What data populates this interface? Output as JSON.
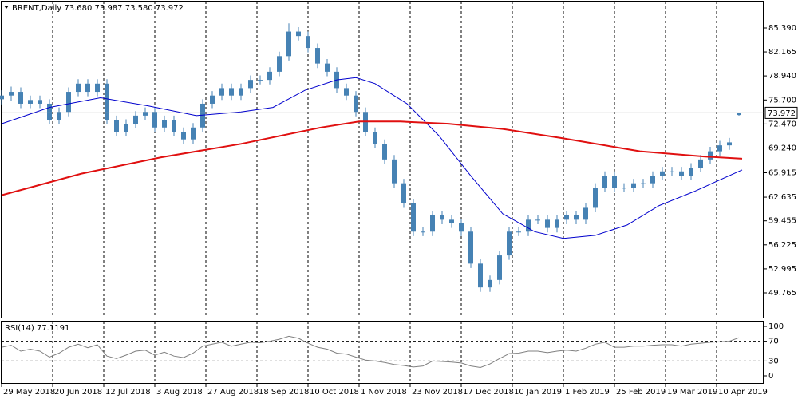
{
  "chart_data": [
    {
      "type": "candlestick",
      "title": "BRENT,Daily  73.680 73.987 73.580 73.972",
      "color": "#4682b4",
      "x": [
        0,
        3,
        6,
        9,
        12,
        15,
        18,
        21,
        24,
        27,
        30,
        33,
        36,
        39,
        42,
        45,
        48,
        51,
        54,
        57,
        60,
        63,
        66,
        69,
        72,
        75,
        78,
        81,
        84,
        87,
        90,
        93,
        96,
        99,
        102,
        105,
        108,
        111,
        114,
        117,
        120,
        123,
        126,
        129,
        132,
        135,
        138,
        141,
        144,
        147,
        150,
        153,
        156,
        159,
        162,
        165,
        168,
        171,
        174,
        177,
        180,
        183,
        186,
        189,
        192,
        195,
        198,
        201,
        204,
        207,
        210,
        213,
        216,
        219,
        222,
        225,
        228,
        231
      ],
      "open": [
        75.8,
        76.3,
        76.8,
        75.2,
        75.7,
        75.2,
        73.0,
        74.1,
        76.8,
        77.9,
        76.8,
        77.9,
        73.0,
        71.4,
        72.5,
        73.6,
        74.1,
        72.0,
        73.0,
        71.4,
        70.4,
        72.0,
        75.2,
        76.3,
        77.3,
        76.3,
        77.3,
        78.4,
        78.4,
        79.5,
        81.6,
        84.9,
        84.3,
        82.7,
        80.6,
        79.5,
        77.3,
        76.3,
        74.1,
        71.4,
        69.8,
        67.7,
        64.5,
        61.8,
        58.0,
        58.0,
        60.2,
        59.6,
        59.1,
        58.0,
        53.7,
        50.5,
        51.5,
        54.8,
        58.0,
        58.0,
        59.6,
        59.6,
        58.5,
        59.6,
        60.2,
        59.6,
        61.2,
        63.9,
        65.5,
        63.9,
        63.9,
        64.5,
        64.5,
        65.5,
        66.1,
        66.1,
        65.5,
        66.6,
        67.7,
        68.8,
        69.6,
        73.68
      ],
      "high": [
        77.0,
        77.5,
        77.4,
        76.3,
        76.3,
        75.8,
        74.7,
        77.4,
        78.5,
        78.5,
        78.5,
        78.5,
        73.6,
        73.1,
        74.2,
        74.7,
        74.7,
        73.6,
        73.6,
        72.0,
        72.6,
        75.8,
        76.9,
        77.9,
        77.9,
        77.9,
        79.0,
        79.0,
        80.1,
        82.2,
        86.0,
        85.5,
        84.9,
        83.3,
        81.2,
        80.1,
        77.9,
        76.9,
        74.7,
        72.0,
        70.4,
        68.3,
        65.1,
        62.4,
        58.6,
        60.8,
        60.8,
        60.2,
        59.7,
        58.6,
        54.3,
        52.1,
        55.4,
        58.6,
        58.6,
        60.2,
        60.2,
        60.2,
        60.2,
        60.8,
        60.8,
        61.8,
        64.5,
        66.1,
        66.1,
        64.5,
        65.1,
        65.1,
        66.1,
        66.7,
        66.7,
        66.7,
        67.2,
        68.3,
        69.4,
        70.2,
        70.6,
        73.987
      ],
      "low": [
        75.1,
        75.6,
        74.6,
        74.6,
        74.6,
        72.4,
        72.4,
        73.5,
        76.2,
        76.2,
        76.2,
        72.4,
        70.8,
        70.8,
        71.9,
        73.0,
        71.4,
        71.4,
        70.8,
        69.8,
        69.8,
        71.4,
        74.6,
        75.7,
        75.7,
        75.7,
        76.7,
        77.8,
        77.8,
        78.9,
        81.0,
        83.7,
        82.1,
        80.0,
        78.9,
        76.7,
        75.7,
        73.5,
        70.8,
        69.2,
        67.1,
        63.9,
        61.2,
        57.4,
        57.4,
        57.4,
        59.0,
        58.5,
        57.4,
        53.1,
        49.9,
        49.9,
        50.9,
        54.2,
        57.4,
        57.4,
        59.0,
        57.9,
        57.9,
        59.0,
        59.0,
        59.0,
        60.6,
        63.3,
        63.3,
        63.3,
        63.3,
        63.9,
        63.9,
        64.9,
        65.5,
        64.9,
        64.9,
        66.0,
        67.1,
        68.2,
        69.0,
        73.58
      ],
      "close": [
        76.3,
        76.8,
        75.2,
        75.7,
        75.2,
        73.0,
        74.1,
        76.8,
        77.9,
        76.8,
        77.9,
        73.0,
        71.4,
        72.5,
        73.6,
        74.1,
        72.0,
        73.0,
        71.4,
        70.4,
        72.0,
        75.2,
        76.3,
        77.3,
        76.3,
        77.3,
        78.4,
        78.4,
        79.5,
        81.6,
        84.9,
        84.3,
        82.7,
        80.6,
        79.5,
        77.3,
        76.3,
        74.1,
        71.4,
        69.8,
        67.7,
        64.5,
        61.8,
        58.0,
        58.0,
        60.2,
        59.6,
        59.1,
        58.0,
        53.7,
        50.5,
        51.5,
        54.8,
        58.0,
        58.0,
        59.6,
        59.6,
        58.5,
        59.6,
        60.2,
        59.6,
        61.2,
        63.9,
        65.5,
        63.9,
        63.9,
        64.5,
        64.5,
        65.5,
        66.1,
        66.1,
        65.5,
        66.6,
        67.7,
        68.8,
        69.6,
        70.0,
        73.972
      ],
      "series": [
        {
          "color": "#0000cd",
          "x": [
            0,
            15,
            31,
            46,
            61,
            75,
            85,
            95,
            105,
            111,
            117,
            127,
            137,
            147,
            157,
            167,
            176,
            186,
            196,
            206,
            217,
            232
          ],
          "values": [
            72.5,
            74.7,
            76.0,
            74.9,
            73.6,
            74.1,
            74.7,
            77.0,
            78.4,
            78.7,
            77.9,
            75.2,
            70.9,
            65.5,
            60.4,
            58.0,
            57.1,
            57.5,
            58.9,
            61.5,
            63.4,
            66.3
          ]
        },
        {
          "color": "#e01010",
          "x": [
            0,
            25,
            50,
            75,
            100,
            112,
            125,
            140,
            157,
            175,
            200,
            220,
            232
          ],
          "values": [
            62.9,
            65.8,
            68.0,
            69.8,
            72.0,
            72.8,
            72.8,
            72.5,
            71.8,
            70.6,
            68.8,
            68.1,
            67.8
          ]
        }
      ],
      "current_price": 73.972,
      "xlim": [
        -0.5,
        238.25
      ],
      "xticks": [
        {
          "value": 0,
          "label": "29 May 2018"
        },
        {
          "value": 16,
          "label": "20 Jun 2018"
        },
        {
          "value": 32,
          "label": "12 Jul 2018"
        },
        {
          "value": 48,
          "label": "3 Aug 2018"
        },
        {
          "value": 64,
          "label": "27 Aug 2018"
        },
        {
          "value": 80,
          "label": "18 Sep 2018"
        },
        {
          "value": 96,
          "label": "10 Oct 2018"
        },
        {
          "value": 112,
          "label": "1 Nov 2018"
        },
        {
          "value": 128,
          "label": "23 Nov 2018"
        },
        {
          "value": 144,
          "label": "17 Dec 2018"
        },
        {
          "value": 160,
          "label": "10 Jan 2019"
        },
        {
          "value": 176,
          "label": "1 Feb 2019"
        },
        {
          "value": 192,
          "label": "25 Feb 2019"
        },
        {
          "value": 208,
          "label": "19 Mar 2019"
        },
        {
          "value": 224,
          "label": "10 Apr 2019"
        }
      ],
      "ylim": [
        46.44,
        88.93
      ],
      "yticks": [
        {
          "value": 85.39,
          "label": "85.390"
        },
        82.165,
        {
          "value": 78.94,
          "label": "78.940"
        },
        {
          "value": 75.7,
          "label": "75.700"
        },
        {
          "value": 72.47,
          "label": "72.470"
        },
        {
          "value": 69.24,
          "label": "69.240"
        },
        65.915,
        62.635,
        59.455,
        56.225,
        52.995,
        49.765
      ]
    },
    {
      "type": "line",
      "title": "RSI(14) 77.1191",
      "color": "#808080",
      "x": [
        0,
        3,
        6,
        9,
        12,
        15,
        18,
        21,
        24,
        27,
        30,
        33,
        36,
        39,
        42,
        45,
        48,
        51,
        54,
        57,
        60,
        63,
        66,
        69,
        72,
        75,
        78,
        81,
        84,
        87,
        90,
        93,
        96,
        99,
        102,
        105,
        108,
        111,
        114,
        117,
        120,
        123,
        126,
        129,
        132,
        135,
        138,
        141,
        144,
        147,
        150,
        153,
        156,
        159,
        162,
        165,
        168,
        171,
        174,
        177,
        180,
        183,
        186,
        189,
        192,
        195,
        198,
        201,
        204,
        207,
        210,
        213,
        216,
        219,
        222,
        225,
        228,
        231
      ],
      "values": [
        58,
        62,
        50,
        54,
        50,
        38,
        46,
        58,
        64,
        57,
        63,
        40,
        35,
        42,
        50,
        52,
        42,
        48,
        40,
        37,
        46,
        60,
        64,
        68,
        60,
        64,
        68,
        67,
        70,
        74,
        80,
        76,
        66,
        58,
        54,
        46,
        44,
        38,
        32,
        30,
        27,
        23,
        21,
        18,
        20,
        30,
        29,
        28,
        26,
        20,
        17,
        24,
        35,
        45,
        46,
        50,
        50,
        47,
        50,
        52,
        50,
        56,
        64,
        68,
        58,
        58,
        60,
        60,
        62,
        63,
        63,
        60,
        64,
        66,
        68,
        69,
        70,
        77.1191
      ],
      "xlim": [
        -0.5,
        238.25
      ],
      "ylim": [
        -14.5,
        109.7
      ],
      "yticks": [
        100,
        70,
        30,
        0
      ],
      "levels": [
        70,
        30
      ]
    }
  ]
}
